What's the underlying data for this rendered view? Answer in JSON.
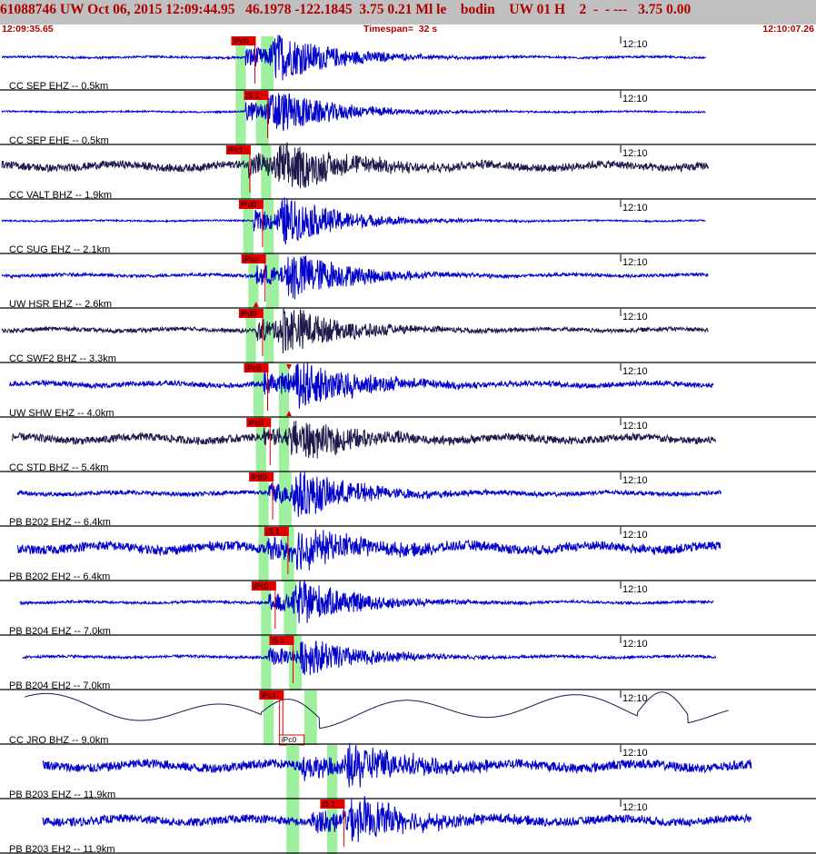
{
  "header": {
    "title": "61088746 UW Oct 06, 2015 12:09:44.95   46.1978 -122.1845  3.75 0.21 Ml le    bodin    UW 01 H    2  -  - ---   3.75 0.00",
    "start_time": "12:09:35.65",
    "timespan": "Timespan=  32 s",
    "end_time": "12:10:07.26"
  },
  "colors": {
    "header_bg": "#c0c0c0",
    "header_text": "#b00000",
    "trace_blue": "#0000cc",
    "trace_dark": "#1a1a4a",
    "pick_red": "#e00000",
    "window_green": "#9ef09e",
    "separator": "#000000"
  },
  "chart_data": {
    "type": "seismogram",
    "time_start": "12:09:35.65",
    "time_end": "12:10:07.26",
    "timespan_s": 32,
    "minute_mark": "12:10",
    "channels": [
      {
        "label": "CC SEP EHZ -- 0.5km",
        "trace_color": "blue",
        "start_s": 0,
        "end_s": 27.7,
        "noise": 0.04,
        "p_arrival_s": 9.6,
        "s_arrival_s": 10.5,
        "amplitude": 0.8,
        "picks": [
          {
            "text": "iPc0",
            "time_s": 9.1,
            "pos": "top"
          }
        ],
        "windows_s": [
          [
            9.2,
            9.6
          ],
          [
            10.2,
            10.7
          ]
        ]
      },
      {
        "label": "CC SEP EHE -- 0.5km",
        "trace_color": "blue",
        "start_s": 0,
        "end_s": 27.7,
        "noise": 0.03,
        "p_arrival_s": 9.6,
        "s_arrival_s": 10.4,
        "amplitude": 0.75,
        "picks": [
          {
            "text": "iS 1",
            "time_s": 9.6,
            "pos": "top"
          }
        ],
        "windows_s": [
          [
            9.2,
            9.6
          ],
          [
            10.0,
            10.5
          ]
        ]
      },
      {
        "label": "CC VALT BHZ -- 1.9km",
        "trace_color": "dark",
        "start_s": 0,
        "end_s": 27.8,
        "noise": 0.15,
        "p_arrival_s": 9.7,
        "s_arrival_s": 10.7,
        "amplitude": 0.85,
        "picks": [
          {
            "text": "iPc1",
            "time_s": 8.9,
            "pos": "top"
          }
        ],
        "windows_s": [
          [
            9.4,
            9.8
          ],
          [
            10.2,
            10.6
          ]
        ]
      },
      {
        "label": "CC SUG EHZ -- 2.1km",
        "trace_color": "blue",
        "start_s": 0,
        "end_s": 27.7,
        "noise": 0.03,
        "p_arrival_s": 9.9,
        "s_arrival_s": 10.8,
        "amplitude": 0.8,
        "picks": [
          {
            "text": "iPd0",
            "time_s": 9.4,
            "pos": "top"
          }
        ],
        "windows_s": [
          [
            9.5,
            9.9
          ],
          [
            10.3,
            10.7
          ]
        ]
      },
      {
        "label": "UW HSR EHZ -- 2.6km",
        "trace_color": "blue",
        "start_s": 0,
        "end_s": 27.8,
        "noise": 0.06,
        "p_arrival_s": 10.0,
        "s_arrival_s": 11.1,
        "amplitude": 0.85,
        "picks": [
          {
            "text": "iPc0",
            "time_s": 9.5,
            "pos": "top"
          }
        ],
        "windows_s": [
          [
            9.7,
            10.1
          ],
          [
            10.4,
            10.9
          ]
        ]
      },
      {
        "label": "CC SWF2 BHZ -- 3.3km",
        "trace_color": "dark",
        "start_s": 0,
        "end_s": 27.8,
        "noise": 0.08,
        "p_arrival_s": 10.0,
        "s_arrival_s": 10.8,
        "amplitude": 0.8,
        "picks": [
          {
            "text": "iPd0",
            "time_s": 9.4,
            "pos": "top"
          }
        ],
        "windows_s": [
          [
            9.6,
            10.0
          ],
          [
            10.3,
            10.7
          ]
        ]
      },
      {
        "label": "UW SHW EHZ -- 4.0km",
        "trace_color": "blue",
        "start_s": 0.3,
        "end_s": 28.0,
        "noise": 0.1,
        "p_arrival_s": 10.3,
        "s_arrival_s": 11.4,
        "amplitude": 0.85,
        "picks": [
          {
            "text": "iPc0",
            "time_s": 9.6,
            "pos": "top"
          }
        ],
        "windows_s": [
          [
            9.9,
            10.3
          ],
          [
            10.9,
            11.3
          ]
        ]
      },
      {
        "label": "CC STD BHZ -- 5.4km",
        "trace_color": "dark",
        "start_s": 0.4,
        "end_s": 28.1,
        "noise": 0.15,
        "p_arrival_s": 10.3,
        "s_arrival_s": 11.2,
        "amplitude": 0.7,
        "picks": [
          {
            "text": "iPc0",
            "time_s": 9.7,
            "pos": "top"
          }
        ],
        "windows_s": [
          [
            10.0,
            10.4
          ],
          [
            10.9,
            11.3
          ]
        ]
      },
      {
        "label": "PB B202 EHZ -- 6.4km",
        "trace_color": "blue",
        "start_s": 0.6,
        "end_s": 28.3,
        "noise": 0.08,
        "p_arrival_s": 10.5,
        "s_arrival_s": 11.3,
        "amplitude": 0.8,
        "picks": [
          {
            "text": "iPd0",
            "time_s": 9.8,
            "pos": "top"
          }
        ],
        "windows_s": [
          [
            10.1,
            10.5
          ],
          [
            10.9,
            11.4
          ]
        ]
      },
      {
        "label": "PB B202 EH2 -- 6.4km",
        "trace_color": "blue",
        "start_s": 0.6,
        "end_s": 28.3,
        "noise": 0.18,
        "p_arrival_s": 10.4,
        "s_arrival_s": 11.3,
        "amplitude": 0.7,
        "picks": [
          {
            "text": "iS 1",
            "time_s": 10.4,
            "pos": "top"
          }
        ],
        "windows_s": [
          [
            10.1,
            10.5
          ],
          [
            11.0,
            11.5
          ]
        ]
      },
      {
        "label": "PB B204 EHZ -- 7.0km",
        "trace_color": "blue",
        "start_s": 0.7,
        "end_s": 28.0,
        "noise": 0.05,
        "p_arrival_s": 10.5,
        "s_arrival_s": 11.4,
        "amplitude": 0.75,
        "picks": [
          {
            "text": "iPc0",
            "time_s": 9.9,
            "pos": "top"
          }
        ],
        "windows_s": [
          [
            10.2,
            10.6
          ],
          [
            11.1,
            11.6
          ]
        ]
      },
      {
        "label": "PB B204 EH2 -- 7.0km",
        "trace_color": "blue",
        "start_s": 0.8,
        "end_s": 28.1,
        "noise": 0.05,
        "p_arrival_s": 10.5,
        "s_arrival_s": 11.6,
        "amplitude": 0.65,
        "picks": [
          {
            "text": "iS 1",
            "time_s": 10.6,
            "pos": "top"
          }
        ],
        "windows_s": [
          [
            10.2,
            10.6
          ],
          [
            11.3,
            11.8
          ]
        ]
      },
      {
        "label": "CC JRO BHZ -- 9.0km",
        "trace_color": "dark",
        "start_s": 0.9,
        "end_s": 28.6,
        "noise": 0.0,
        "p_arrival_s": 10.7,
        "s_arrival_s": 11.6,
        "amplitude": 0.0,
        "picks": [
          {
            "text": "iPc1",
            "time_s": 10.2,
            "pos": "top"
          },
          {
            "text": "iPc0",
            "time_s": 11.0,
            "pos": "bottom"
          }
        ],
        "windows_s": [
          [
            10.3,
            10.7
          ],
          [
            11.9,
            12.4
          ]
        ]
      },
      {
        "label": "PB B203 EHZ -- 11.9km",
        "trace_color": "blue",
        "start_s": 1.6,
        "end_s": 29.5,
        "noise": 0.18,
        "p_arrival_s": 11.8,
        "s_arrival_s": 13.4,
        "amplitude": 0.8,
        "picks": [],
        "windows_s": [
          [
            11.2,
            11.7
          ],
          [
            12.8,
            13.2
          ]
        ]
      },
      {
        "label": "PB B203 EH2 -- 11.9km",
        "trace_color": "blue",
        "start_s": 1.6,
        "end_s": 29.5,
        "noise": 0.16,
        "p_arrival_s": 12.2,
        "s_arrival_s": 13.4,
        "amplitude": 0.8,
        "picks": [
          {
            "text": "iS 1",
            "time_s": 12.6,
            "pos": "top"
          }
        ],
        "windows_s": [
          [
            11.2,
            11.7
          ],
          [
            12.8,
            13.2
          ]
        ]
      }
    ],
    "markers": [
      {
        "channel": 4,
        "time_s": 10.0,
        "shape": "triangle-down",
        "pos": "top"
      },
      {
        "channel": 4,
        "time_s": 10.0,
        "shape": "triangle-up",
        "pos": "bottom"
      },
      {
        "channel": 6,
        "time_s": 11.3,
        "shape": "triangle-down",
        "pos": "top"
      },
      {
        "channel": 6,
        "time_s": 11.3,
        "shape": "triangle-up",
        "pos": "bottom"
      }
    ]
  }
}
